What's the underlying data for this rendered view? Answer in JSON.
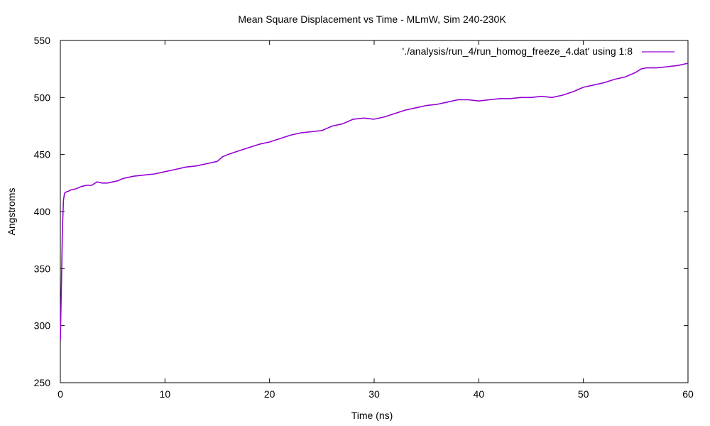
{
  "chart_data": {
    "type": "line",
    "title": "Mean Square Displacement vs Time - MLmW, Sim 240-230K",
    "xlabel": "Time (ns)",
    "ylabel": "Angstroms",
    "xlim": [
      0,
      60
    ],
    "ylim": [
      250,
      550
    ],
    "x_ticks": [
      0,
      10,
      20,
      30,
      40,
      50,
      60
    ],
    "y_ticks": [
      250,
      300,
      350,
      400,
      450,
      500,
      550
    ],
    "grid": false,
    "legend_position": "top-right",
    "series": [
      {
        "name": "'./analysis/run_4/run_homog_freeze_4.dat' using 1:8",
        "color": "#9400d3",
        "x": [
          0,
          0.05,
          0.1,
          0.15,
          0.2,
          0.3,
          0.4,
          0.5,
          0.8,
          1,
          1.5,
          2,
          2.5,
          3,
          3.5,
          4,
          4.5,
          5,
          5.5,
          6,
          6.5,
          7,
          8,
          9,
          10,
          11,
          12,
          13,
          14,
          15,
          15.5,
          16,
          17,
          18,
          19,
          20,
          21,
          22,
          23,
          24,
          25,
          25.5,
          26,
          27,
          28,
          29,
          30,
          31,
          32,
          33,
          34,
          35,
          36,
          37,
          38,
          39,
          40,
          41,
          42,
          43,
          44,
          45,
          46,
          47,
          48,
          49,
          50,
          51,
          52,
          53,
          54,
          55,
          55.5,
          56,
          57,
          58,
          59,
          60
        ],
        "y": [
          287,
          310,
          335,
          360,
          385,
          410,
          416,
          417,
          418,
          419,
          420,
          422,
          423,
          423,
          426,
          425,
          425,
          426,
          427,
          429,
          430,
          431,
          432,
          433,
          435,
          437,
          439,
          440,
          442,
          444,
          448,
          450,
          453,
          456,
          459,
          461,
          464,
          467,
          469,
          470,
          471,
          473,
          475,
          477,
          481,
          482,
          481,
          483,
          486,
          489,
          491,
          493,
          494,
          496,
          498,
          498,
          497,
          498,
          499,
          499,
          500,
          500,
          501,
          500,
          502,
          505,
          509,
          511,
          513,
          516,
          518,
          522,
          525,
          526,
          526,
          527,
          528,
          530
        ]
      }
    ]
  }
}
